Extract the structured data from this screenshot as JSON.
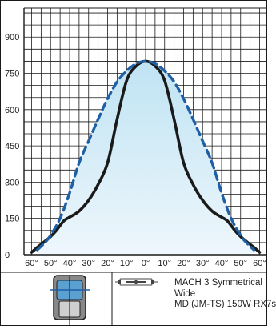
{
  "chart_data": {
    "type": "line",
    "x_unit": "°",
    "x_ticks": [
      -60,
      -50,
      -40,
      -30,
      -20,
      -10,
      0,
      10,
      20,
      30,
      40,
      50,
      60
    ],
    "x_tick_labels": [
      "60°",
      "50°",
      "40°",
      "30°",
      "20°",
      "10°",
      "0°",
      "10°",
      "20°",
      "30°",
      "40°",
      "50°",
      "60°"
    ],
    "y_ticks": [
      0,
      150,
      300,
      450,
      600,
      750,
      900
    ],
    "xlim": [
      -64,
      64
    ],
    "ylim": [
      0,
      1020
    ],
    "grid": true,
    "series": [
      {
        "style": "solid",
        "color": "#1a1a1a",
        "x": [
          -60,
          -57,
          -53,
          -50,
          -47,
          -43,
          -40,
          -35,
          -30,
          -25,
          -20,
          -15,
          -10,
          -5,
          0,
          5,
          10,
          15,
          20,
          25,
          30,
          35,
          40,
          43,
          47,
          50,
          53,
          57,
          60
        ],
        "y": [
          10,
          30,
          55,
          75,
          100,
          140,
          155,
          180,
          225,
          290,
          380,
          560,
          720,
          780,
          800,
          780,
          720,
          560,
          380,
          290,
          225,
          180,
          155,
          140,
          100,
          75,
          55,
          30,
          10
        ]
      },
      {
        "style": "dashed",
        "color": "#1f5fa6",
        "x": [
          -57,
          -53,
          -50,
          -45,
          -40,
          -35,
          -30,
          -25,
          -20,
          -15,
          -10,
          -5,
          0,
          5,
          10,
          15,
          20,
          25,
          30,
          35,
          40,
          45,
          50,
          53,
          57
        ],
        "y": [
          20,
          50,
          80,
          150,
          255,
          380,
          470,
          560,
          645,
          715,
          760,
          790,
          800,
          790,
          760,
          715,
          645,
          560,
          470,
          380,
          255,
          150,
          80,
          50,
          20
        ]
      }
    ]
  },
  "fixture": {
    "lines": [
      "MACH 3 Symmetrical",
      "Wide",
      "MD (JM-TS) 150W RX7s"
    ]
  },
  "colors": {
    "fill_top": "#bfe3f3",
    "fill_bottom": "#eef7fc",
    "grid": "#1a1a1a",
    "lamp_icon": "#444444"
  }
}
